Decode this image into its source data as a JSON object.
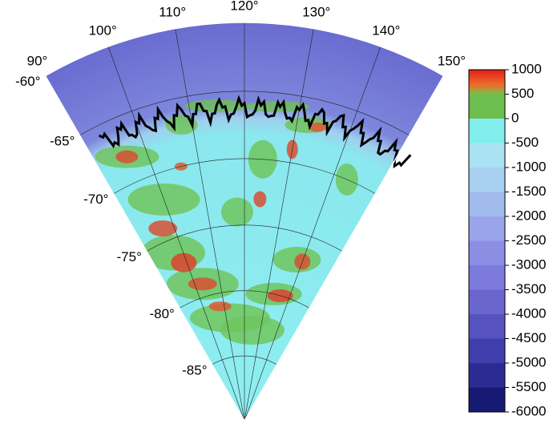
{
  "map": {
    "lonlim": [
      90,
      150
    ],
    "latlim": [
      -90,
      -60
    ],
    "lon_ticks": [
      {
        "value": 90,
        "label": "90°"
      },
      {
        "value": 100,
        "label": "100°"
      },
      {
        "value": 110,
        "label": "110°"
      },
      {
        "value": 120,
        "label": "120°"
      },
      {
        "value": 130,
        "label": "130°"
      },
      {
        "value": 140,
        "label": "140°"
      },
      {
        "value": 150,
        "label": "150°"
      }
    ],
    "lat_ticks": [
      {
        "value": -60,
        "label": "-60°"
      },
      {
        "value": -65,
        "label": "-65°"
      },
      {
        "value": -70,
        "label": "-70°"
      },
      {
        "value": -75,
        "label": "-75°"
      },
      {
        "value": -80,
        "label": "-80°"
      },
      {
        "value": -85,
        "label": "-85°"
      }
    ]
  },
  "colorbar": {
    "lim": [
      -6000,
      1000
    ],
    "ticks": [
      1000,
      500,
      0,
      -500,
      -1000,
      -1500,
      -2000,
      -2500,
      -3000,
      -3500,
      -4000,
      -4500,
      -5000,
      -5500,
      -6000
    ],
    "band_colors": [
      "#e2321e",
      "#6cbf4e",
      "#82eeee",
      "#a9e3f3",
      "#a8d0f0",
      "#a2bbee",
      "#9aa4ea",
      "#8c8ee4",
      "#7c7ada",
      "#6a66ce",
      "#5652c0",
      "#403ead",
      "#2c2b94",
      "#161a72"
    ]
  }
}
